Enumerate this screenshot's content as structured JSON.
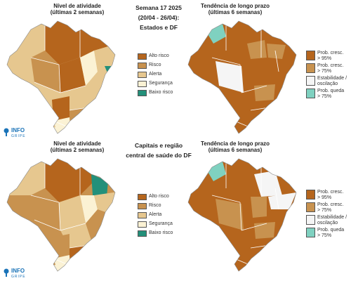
{
  "center_top": {
    "line1": "Semana 17 2025",
    "line2": "(20/04 - 26/04):",
    "line3": "Estados e DF"
  },
  "center_bottom": {
    "line1": "Capitais e região",
    "line2": "central de saúde do DF"
  },
  "activity_title": {
    "line1": "Nível de atividade",
    "line2": "(últimas 2 semanas)"
  },
  "trend_title": {
    "line1": "Tendência de longo prazo",
    "line2": "(últimas 6 semanas)"
  },
  "activity_legend": [
    {
      "label": "Alto risco",
      "color": "#b5651d"
    },
    {
      "label": "Risco",
      "color": "#c8924f"
    },
    {
      "label": "Alerta",
      "color": "#e6c78f"
    },
    {
      "label": "Segurança",
      "color": "#fbf2d4"
    },
    {
      "label": "Baixo risco",
      "color": "#23907a"
    }
  ],
  "trend_legend": [
    {
      "line1": "Prob. cresc.",
      "line2": "> 95%",
      "color": "#b5651d"
    },
    {
      "line1": "Prob. cresc.",
      "line2": "> 75%",
      "color": "#c8924f"
    },
    {
      "line1": "Estabilidade /",
      "line2": "oscilação",
      "color": "#f5f5f5"
    },
    {
      "line1": "Prob. queda",
      "line2": "> 75%",
      "color": "#7fd1c0"
    }
  ],
  "logo": {
    "text": "INFO",
    "sub": "GRIPE"
  }
}
